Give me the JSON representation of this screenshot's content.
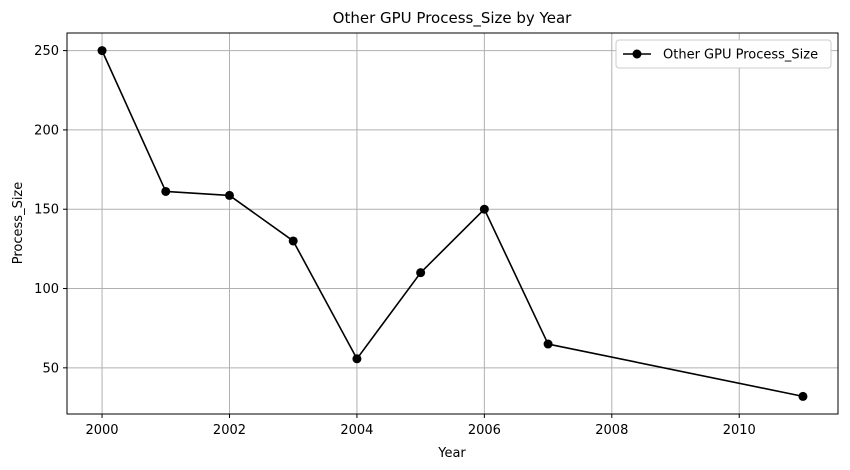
{
  "chart_data": {
    "type": "line",
    "title": "Other GPU Process_Size by Year",
    "xlabel": "Year",
    "ylabel": "Process_Size",
    "x": [
      2000,
      2001,
      2002,
      2003,
      2004,
      2005,
      2006,
      2007,
      2011
    ],
    "series": [
      {
        "name": "Other GPU Process_Size",
        "values": [
          250,
          161.2,
          158.7,
          130,
          55.7,
          110,
          150,
          65,
          32
        ],
        "color": "#000000",
        "marker": "circle"
      }
    ],
    "xlim": [
      1999.45,
      2011.55
    ],
    "ylim": [
      20.9,
      261.1
    ],
    "xticks": [
      2000,
      2002,
      2004,
      2006,
      2008,
      2010
    ],
    "yticks": [
      50,
      100,
      150,
      200,
      250
    ],
    "grid": true,
    "legend_position": "top-right"
  }
}
